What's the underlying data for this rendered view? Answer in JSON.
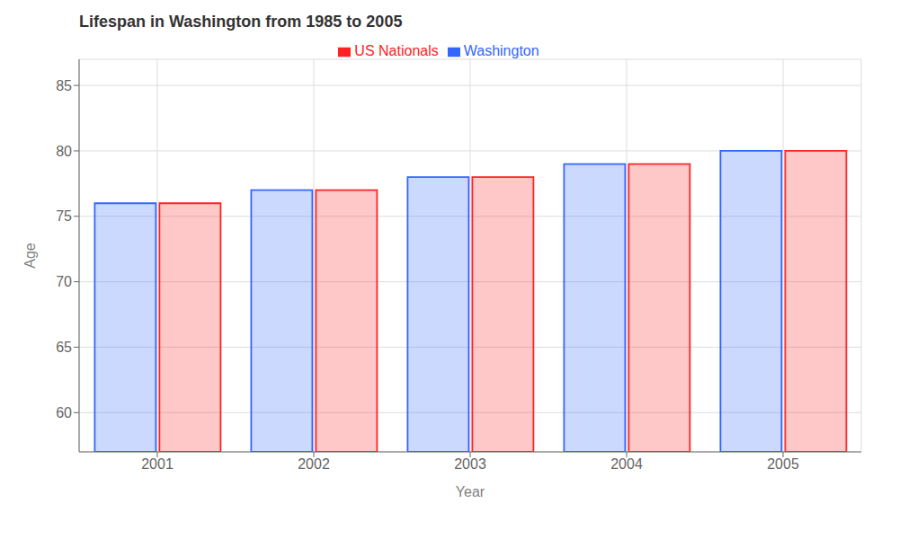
{
  "chart_data": {
    "type": "bar",
    "title": "Lifespan in Washington from 1985 to 2005",
    "x_label": "Year",
    "y_label": "Age",
    "categories": [
      "2001",
      "2002",
      "2003",
      "2004",
      "2005"
    ],
    "series": [
      {
        "name": "Washington",
        "color": "#3366ff",
        "values": [
          76,
          77,
          78,
          79,
          80
        ]
      },
      {
        "name": "US Nationals",
        "color": "#ff2222",
        "values": [
          76,
          77,
          78,
          79,
          80
        ]
      }
    ],
    "ylim": [
      57,
      87
    ],
    "yticks": [
      60,
      65,
      70,
      75,
      80,
      85
    ],
    "grid": true,
    "legend": "top"
  }
}
